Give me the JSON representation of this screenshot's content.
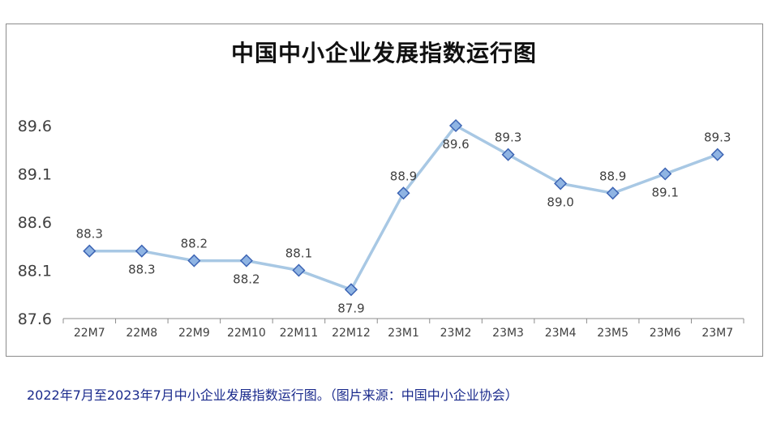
{
  "chart_data": {
    "type": "line",
    "title": "中国中小企业发展指数运行图",
    "categories": [
      "22M7",
      "22M8",
      "22M9",
      "22M10",
      "22M11",
      "22M12",
      "23M1",
      "23M2",
      "23M3",
      "23M4",
      "23M5",
      "23M6",
      "23M7"
    ],
    "series": [
      {
        "values": [
          88.3,
          88.3,
          88.2,
          88.2,
          88.1,
          87.9,
          88.9,
          89.6,
          89.3,
          89.0,
          88.9,
          89.1,
          89.3
        ]
      }
    ],
    "y_ticks": [
      "87.6",
      "88.1",
      "88.6",
      "89.1",
      "89.6"
    ],
    "ylim": [
      87.6,
      89.6
    ],
    "label_positions": [
      "above",
      "below",
      "above",
      "below",
      "above",
      "below",
      "above",
      "below",
      "above",
      "below",
      "above",
      "below",
      "above"
    ],
    "grid": false,
    "legend": "none",
    "colors": {
      "line": "#a8c8e4",
      "marker_fill": "#8fb4e3",
      "marker_stroke": "#3c64b4",
      "axis": "#8c8c8c",
      "text": "#404040",
      "caption": "#1a2a8c"
    }
  },
  "caption": "2022年7月至2023年7月中小企业发展指数运行图。（图片来源：中国中小企业协会）"
}
